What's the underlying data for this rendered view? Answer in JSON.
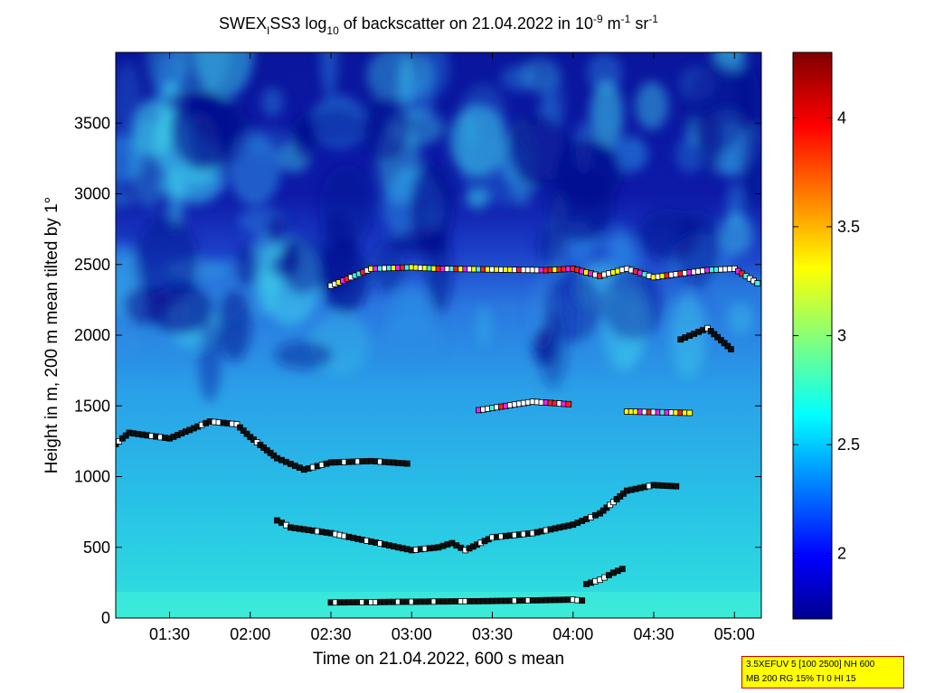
{
  "chart_data": {
    "type": "heatmap",
    "title": {
      "prefix": "SWEX",
      "sub1": "I",
      "mid1": "SS3 log",
      "sub2": "10",
      "mid2": " of backscatter on 21.04.2022 in 10",
      "sup1": "-9",
      "mid3": " m",
      "sup2": "-1",
      "mid4": " sr",
      "sup3": "-1"
    },
    "xlabel": "Time on 21.04.2022, 600 s mean",
    "ylabel": "Height in m, 200 m mean tilted by 1°",
    "xlim": [
      "01:10",
      "05:10"
    ],
    "ylim": [
      0,
      4000
    ],
    "x_ticks": [
      "01:30",
      "02:00",
      "02:30",
      "03:00",
      "03:30",
      "04:00",
      "04:30",
      "05:00"
    ],
    "y_ticks": [
      0,
      500,
      1000,
      1500,
      2000,
      2500,
      3000,
      3500
    ],
    "colorbar": {
      "limits": [
        1.7,
        4.3
      ],
      "ticks": [
        "2",
        "2.5",
        "3",
        "3.5",
        "4"
      ],
      "colormap": "jet"
    },
    "layer_traces": [
      {
        "name": "surface",
        "points": [
          [
            "02:30",
            110
          ],
          [
            "03:30",
            120
          ],
          [
            "04:00",
            130
          ],
          [
            "04:05",
            120
          ]
        ]
      },
      {
        "name": "low-rise",
        "points": [
          [
            "04:05",
            240
          ],
          [
            "04:10",
            270
          ],
          [
            "04:15",
            320
          ],
          [
            "04:20",
            360
          ]
        ]
      },
      {
        "name": "mid-layer",
        "points": [
          [
            "02:10",
            690
          ],
          [
            "02:15",
            640
          ],
          [
            "02:30",
            600
          ],
          [
            "02:45",
            540
          ],
          [
            "03:00",
            480
          ],
          [
            "03:10",
            500
          ],
          [
            "03:15",
            530
          ],
          [
            "03:20",
            480
          ],
          [
            "03:30",
            570
          ],
          [
            "03:45",
            600
          ],
          [
            "04:00",
            660
          ],
          [
            "04:10",
            740
          ],
          [
            "04:20",
            900
          ],
          [
            "04:30",
            940
          ],
          [
            "04:40",
            930
          ]
        ]
      },
      {
        "name": "boundary-layer",
        "points": [
          [
            "01:10",
            1230
          ],
          [
            "01:15",
            1310
          ],
          [
            "01:30",
            1270
          ],
          [
            "01:45",
            1390
          ],
          [
            "01:55",
            1370
          ],
          [
            "02:00",
            1280
          ],
          [
            "02:10",
            1130
          ],
          [
            "02:20",
            1050
          ],
          [
            "02:30",
            1100
          ],
          [
            "02:45",
            1110
          ],
          [
            "03:00",
            1090
          ]
        ]
      },
      {
        "name": "residual-layer",
        "points": [
          [
            "03:25",
            1470
          ],
          [
            "03:45",
            1530
          ],
          [
            "04:00",
            1510
          ]
        ]
      },
      {
        "name": "upper-residual",
        "points": [
          [
            "04:20",
            1460
          ],
          [
            "04:45",
            1450
          ]
        ]
      },
      {
        "name": "elevated-right",
        "points": [
          [
            "04:40",
            1970
          ],
          [
            "04:50",
            2050
          ],
          [
            "05:00",
            1880
          ]
        ]
      },
      {
        "name": "top-of-aerosol",
        "points": [
          [
            "02:30",
            2350
          ],
          [
            "02:45",
            2470
          ],
          [
            "03:00",
            2480
          ],
          [
            "03:10",
            2470
          ],
          [
            "03:50",
            2460
          ],
          [
            "04:00",
            2470
          ],
          [
            "04:10",
            2420
          ],
          [
            "04:20",
            2470
          ],
          [
            "04:30",
            2410
          ],
          [
            "04:50",
            2460
          ],
          [
            "05:00",
            2470
          ],
          [
            "05:10",
            2350
          ]
        ]
      }
    ]
  },
  "info_box": {
    "line1": "3.5XEFUV 5 [100 2500] NH 600",
    "line2": "MB 200 RG 15% TI 0 HI 15"
  }
}
